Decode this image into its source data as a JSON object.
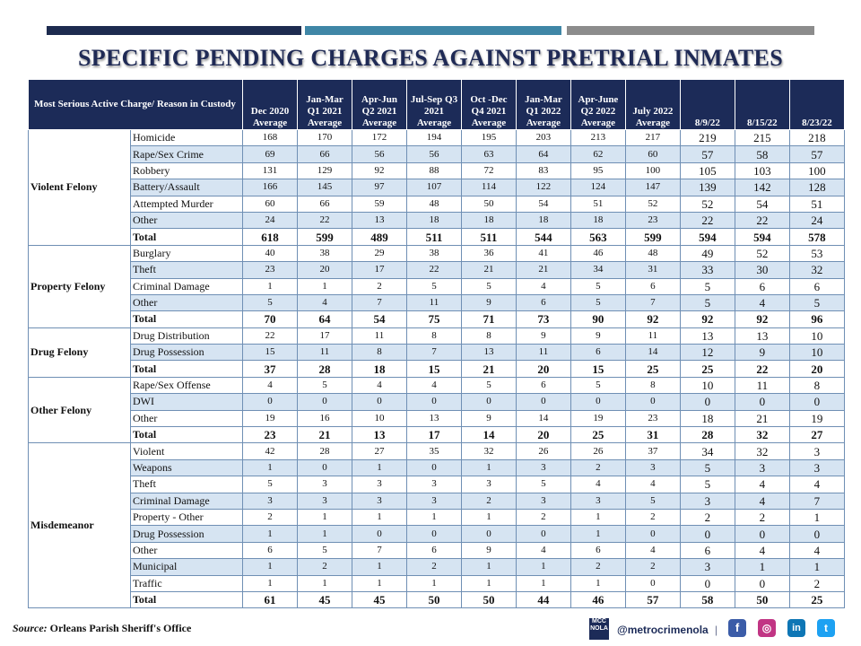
{
  "title": "SPECIFIC PENDING CHARGES AGAINST PRETRIAL INMATES",
  "header": {
    "label": "Most Serious Active Charge/ Reason in Custody",
    "columns": [
      "Dec 2020 Average",
      "Jan-Mar Q1 2021 Average",
      "Apr-Jun Q2 2021 Average",
      "Jul-Sep Q3 2021 Average",
      "Oct -Dec Q4 2021 Average",
      "Jan-Mar Q1 2022 Average",
      "Apr-June Q2 2022 Average",
      "July 2022 Average",
      "8/9/22",
      "8/15/22",
      "8/23/22"
    ]
  },
  "groups": [
    {
      "category": "Violent Felony",
      "rows": [
        {
          "label": "Homicide",
          "values": [
            "168",
            "170",
            "172",
            "194",
            "195",
            "203",
            "213",
            "217",
            "219",
            "215",
            "218"
          ]
        },
        {
          "label": "Rape/Sex Crime",
          "values": [
            "69",
            "66",
            "56",
            "56",
            "63",
            "64",
            "62",
            "60",
            "57",
            "58",
            "57"
          ]
        },
        {
          "label": "Robbery",
          "values": [
            "131",
            "129",
            "92",
            "88",
            "72",
            "83",
            "95",
            "100",
            "105",
            "103",
            "100"
          ]
        },
        {
          "label": "Battery/Assault",
          "values": [
            "166",
            "145",
            "97",
            "107",
            "114",
            "122",
            "124",
            "147",
            "139",
            "142",
            "128"
          ]
        },
        {
          "label": "Attempted Murder",
          "values": [
            "60",
            "66",
            "59",
            "48",
            "50",
            "54",
            "51",
            "52",
            "52",
            "54",
            "51"
          ]
        },
        {
          "label": "Other",
          "values": [
            "24",
            "22",
            "13",
            "18",
            "18",
            "18",
            "18",
            "23",
            "22",
            "22",
            "24"
          ]
        },
        {
          "label": "Total",
          "values": [
            "618",
            "599",
            "489",
            "511",
            "511",
            "544",
            "563",
            "599",
            "594",
            "594",
            "578"
          ]
        }
      ]
    },
    {
      "category": "Property Felony",
      "rows": [
        {
          "label": "Burglary",
          "values": [
            "40",
            "38",
            "29",
            "38",
            "36",
            "41",
            "46",
            "48",
            "49",
            "52",
            "53"
          ]
        },
        {
          "label": "Theft",
          "values": [
            "23",
            "20",
            "17",
            "22",
            "21",
            "21",
            "34",
            "31",
            "33",
            "30",
            "32"
          ]
        },
        {
          "label": "Criminal Damage",
          "values": [
            "1",
            "1",
            "2",
            "5",
            "5",
            "4",
            "5",
            "6",
            "5",
            "6",
            "6"
          ]
        },
        {
          "label": "Other",
          "values": [
            "5",
            "4",
            "7",
            "11",
            "9",
            "6",
            "5",
            "7",
            "5",
            "4",
            "5"
          ]
        },
        {
          "label": "Total",
          "values": [
            "70",
            "64",
            "54",
            "75",
            "71",
            "73",
            "90",
            "92",
            "92",
            "92",
            "96"
          ]
        }
      ]
    },
    {
      "category": "Drug Felony",
      "rows": [
        {
          "label": "Drug Distribution",
          "values": [
            "22",
            "17",
            "11",
            "8",
            "8",
            "9",
            "9",
            "11",
            "13",
            "13",
            "10"
          ]
        },
        {
          "label": "Drug Possession",
          "values": [
            "15",
            "11",
            "8",
            "7",
            "13",
            "11",
            "6",
            "14",
            "12",
            "9",
            "10"
          ]
        },
        {
          "label": "Total",
          "values": [
            "37",
            "28",
            "18",
            "15",
            "21",
            "20",
            "15",
            "25",
            "25",
            "22",
            "20"
          ]
        }
      ]
    },
    {
      "category": "Other Felony",
      "rows": [
        {
          "label": "Rape/Sex Offense",
          "values": [
            "4",
            "5",
            "4",
            "4",
            "5",
            "6",
            "5",
            "8",
            "10",
            "11",
            "8"
          ]
        },
        {
          "label": "DWI",
          "values": [
            "0",
            "0",
            "0",
            "0",
            "0",
            "0",
            "0",
            "0",
            "0",
            "0",
            "0"
          ]
        },
        {
          "label": "Other",
          "values": [
            "19",
            "16",
            "10",
            "13",
            "9",
            "14",
            "19",
            "23",
            "18",
            "21",
            "19"
          ]
        },
        {
          "label": "Total",
          "values": [
            "23",
            "21",
            "13",
            "17",
            "14",
            "20",
            "25",
            "31",
            "28",
            "32",
            "27"
          ]
        }
      ]
    },
    {
      "category": "Misdemeanor",
      "rows": [
        {
          "label": "Violent",
          "values": [
            "42",
            "28",
            "27",
            "35",
            "32",
            "26",
            "26",
            "37",
            "34",
            "32",
            "3"
          ]
        },
        {
          "label": "Weapons",
          "values": [
            "1",
            "0",
            "1",
            "0",
            "1",
            "3",
            "2",
            "3",
            "5",
            "3",
            "3"
          ]
        },
        {
          "label": "Theft",
          "values": [
            "5",
            "3",
            "3",
            "3",
            "3",
            "5",
            "4",
            "4",
            "5",
            "4",
            "4"
          ]
        },
        {
          "label": "Criminal Damage",
          "values": [
            "3",
            "3",
            "3",
            "3",
            "2",
            "3",
            "3",
            "5",
            "3",
            "4",
            "7"
          ]
        },
        {
          "label": "Property - Other",
          "values": [
            "2",
            "1",
            "1",
            "1",
            "1",
            "2",
            "1",
            "2",
            "2",
            "2",
            "1"
          ]
        },
        {
          "label": "Drug Possession",
          "values": [
            "1",
            "1",
            "0",
            "0",
            "0",
            "0",
            "1",
            "0",
            "0",
            "0",
            "0"
          ]
        },
        {
          "label": "Other",
          "values": [
            "6",
            "5",
            "7",
            "6",
            "9",
            "4",
            "6",
            "4",
            "6",
            "4",
            "4"
          ]
        },
        {
          "label": "Municipal",
          "values": [
            "1",
            "2",
            "1",
            "2",
            "1",
            "1",
            "2",
            "2",
            "3",
            "1",
            "1"
          ]
        },
        {
          "label": "Traffic",
          "values": [
            "1",
            "1",
            "1",
            "1",
            "1",
            "1",
            "1",
            "0",
            "0",
            "0",
            "2"
          ]
        },
        {
          "label": "Total",
          "values": [
            "61",
            "45",
            "45",
            "50",
            "50",
            "44",
            "46",
            "57",
            "58",
            "50",
            "25"
          ]
        }
      ]
    }
  ],
  "footer": {
    "source_label": "Source:",
    "source_text": "Orleans Parish Sheriff's Office",
    "logo_text": "MCC NOLA",
    "handle": "@metrocrimenola",
    "separator": "|",
    "social": {
      "facebook": "f",
      "instagram": "◎",
      "linkedin": "in",
      "twitter": "t"
    }
  },
  "colors": {
    "header_bg": "#1c2b58",
    "alt_row": "#d6e4f2",
    "title": "#1f2a55"
  }
}
